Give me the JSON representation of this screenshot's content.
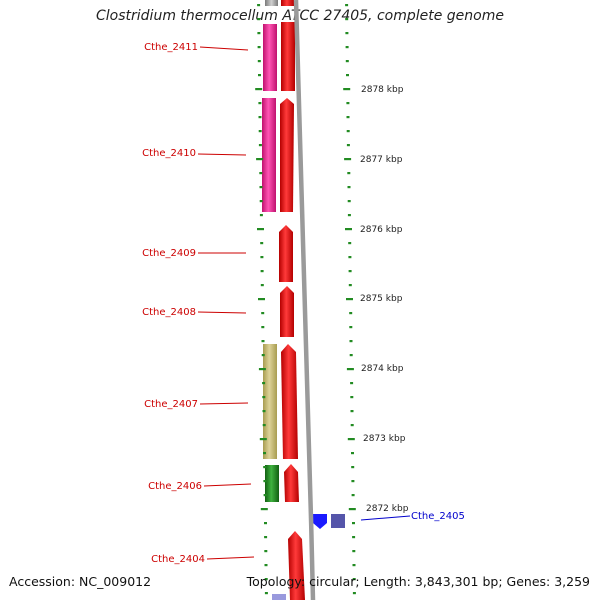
{
  "title": "Clostridium thermocellum ATCC 27405, complete genome",
  "footer": {
    "accession": "Accession: NC_009012",
    "topology": "Topology: circular; Length: 3,843,301 bp; Genes: 3,259"
  },
  "colors": {
    "background": "#ffffff",
    "backbone": "#9a9a9a",
    "cds": "#ff0000",
    "cog_pink": "#ff3399",
    "cog_tan": "#c8bd72",
    "cog_green": "#229922",
    "cog_blue": "#1a1aff",
    "cog_slate": "#5555aa",
    "cog_lavender": "#9999dd",
    "tick": "#228b22",
    "label_red": "#cc0000",
    "label_blue": "#0000cc"
  },
  "ruler": {
    "unit": "kbp",
    "labels": [
      "2878 kbp",
      "2877 kbp",
      "2876 kbp",
      "2875 kbp",
      "2874 kbp",
      "2873 kbp",
      "2872 kbp"
    ]
  },
  "genes": [
    {
      "name": "Cthe_2411",
      "strand": "-",
      "label_color": "red"
    },
    {
      "name": "Cthe_2410",
      "strand": "-",
      "label_color": "red"
    },
    {
      "name": "Cthe_2409",
      "strand": "-",
      "label_color": "red"
    },
    {
      "name": "Cthe_2408",
      "strand": "-",
      "label_color": "red"
    },
    {
      "name": "Cthe_2407",
      "strand": "-",
      "label_color": "red"
    },
    {
      "name": "Cthe_2406",
      "strand": "-",
      "label_color": "red"
    },
    {
      "name": "Cthe_2405",
      "strand": "+",
      "label_color": "blue"
    },
    {
      "name": "Cthe_2404",
      "strand": "-",
      "label_color": "red"
    }
  ]
}
